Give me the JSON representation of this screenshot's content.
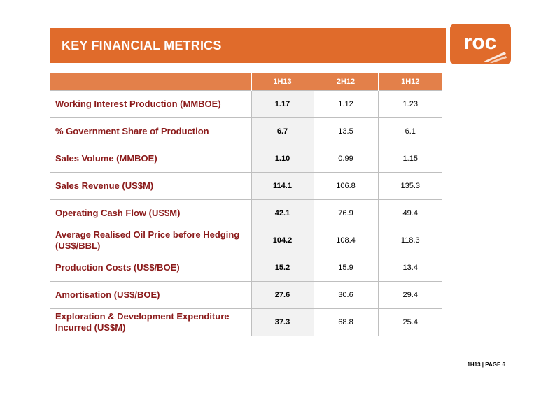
{
  "slide": {
    "title": "KEY FINANCIAL METRICS",
    "logo_text": "roc",
    "footer": "1H13 | PAGE 6"
  },
  "colors": {
    "accent": "#e06b2b",
    "header_fill": "#e3804a",
    "label_text": "#8b1a1a",
    "highlight_column": "#f2f2f2"
  },
  "table": {
    "columns": [
      "",
      "1H13",
      "2H12",
      "1H12"
    ],
    "rows": [
      {
        "label": "Working Interest Production (MMBOE)",
        "values": [
          "1.17",
          "1.12",
          "1.23"
        ]
      },
      {
        "label": "% Government Share of Production",
        "values": [
          "6.7",
          "13.5",
          "6.1"
        ]
      },
      {
        "label": "Sales Volume (MMBOE)",
        "values": [
          "1.10",
          "0.99",
          "1.15"
        ]
      },
      {
        "label": "Sales Revenue (US$M)",
        "values": [
          "114.1",
          "106.8",
          "135.3"
        ]
      },
      {
        "label": "Operating Cash Flow (US$M)",
        "values": [
          "42.1",
          "76.9",
          "49.4"
        ]
      },
      {
        "label": "Average Realised Oil Price before Hedging (US$/BBL)",
        "values": [
          "104.2",
          "108.4",
          "118.3"
        ]
      },
      {
        "label": "Production Costs (US$/BOE)",
        "values": [
          "15.2",
          "15.9",
          "13.4"
        ]
      },
      {
        "label": "Amortisation (US$/BOE)",
        "values": [
          "27.6",
          "30.6",
          "29.4"
        ]
      },
      {
        "label": "Exploration & Development Expenditure Incurred (US$M)",
        "values": [
          "37.3",
          "68.8",
          "25.4"
        ]
      }
    ]
  }
}
